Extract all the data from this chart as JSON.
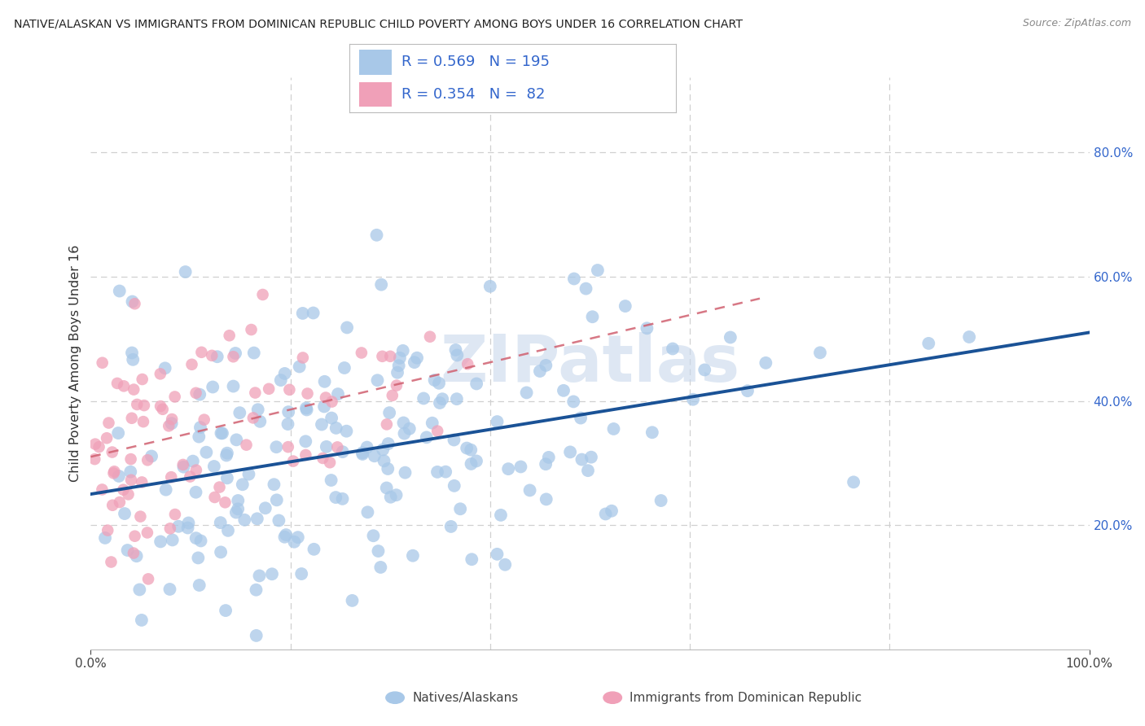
{
  "title": "NATIVE/ALASKAN VS IMMIGRANTS FROM DOMINICAN REPUBLIC CHILD POVERTY AMONG BOYS UNDER 16 CORRELATION CHART",
  "source": "Source: ZipAtlas.com",
  "ylabel": "Child Poverty Among Boys Under 16",
  "blue_R": 0.569,
  "blue_N": 195,
  "pink_R": 0.354,
  "pink_N": 82,
  "blue_color": "#a8c8e8",
  "pink_color": "#f0a0b8",
  "blue_line_color": "#1a5296",
  "pink_line_color": "#d06070",
  "ytick_color": "#3366cc",
  "xtick_color": "#444444",
  "legend_text_color": "#3366cc",
  "watermark": "ZIPatlas",
  "watermark_color": "#c8d8ec",
  "grid_color": "#d0d0d0",
  "blue_legend_label": "Natives/Alaskans",
  "pink_legend_label": "Immigrants from Dominican Republic",
  "blue_seed": 42,
  "pink_seed": 99,
  "xlim": [
    0.0,
    1.0
  ],
  "ylim": [
    0.0,
    0.92
  ],
  "ytick_positions": [
    0.2,
    0.4,
    0.6,
    0.8
  ],
  "ytick_labels": [
    "20.0%",
    "40.0%",
    "60.0%",
    "80.0%"
  ],
  "xtick_positions": [
    0.0,
    1.0
  ],
  "xtick_labels": [
    "0.0%",
    "100.0%"
  ],
  "blue_intercept": 0.25,
  "blue_slope": 0.26,
  "pink_intercept": 0.31,
  "pink_slope": 0.38,
  "scatter_size": 130,
  "scatter_alpha": 0.75
}
